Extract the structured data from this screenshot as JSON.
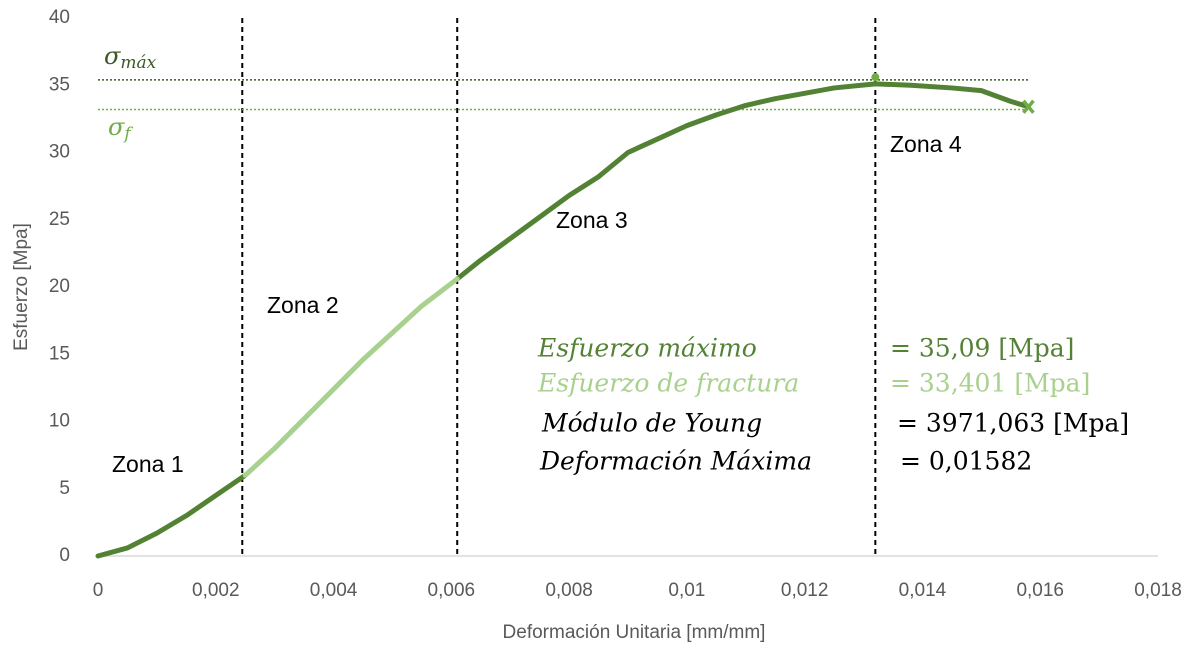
{
  "chart_data": {
    "type": "line",
    "x_label": "Deformación Unitaria [mm/mm]",
    "y_label": "Esfuerzo [Mpa]",
    "x": [
      0,
      0.0005,
      0.001,
      0.0015,
      0.002,
      0.0025,
      0.003,
      0.0035,
      0.004,
      0.0045,
      0.005,
      0.0055,
      0.0061,
      0.0065,
      0.007,
      0.0075,
      0.008,
      0.0085,
      0.009,
      0.0095,
      0.01,
      0.0105,
      0.011,
      0.0115,
      0.012,
      0.0125,
      0.0132,
      0.0138,
      0.0145,
      0.015,
      0.0155,
      0.0158
    ],
    "series": [
      {
        "color": "#548235",
        "values": [
          0,
          0.6,
          1.7,
          3.0,
          4.5,
          6.0,
          null,
          null,
          null,
          null,
          null,
          null,
          20.6,
          22.0,
          23.6,
          25.2,
          26.8,
          28.2,
          30.0,
          31.0,
          32.0,
          32.8,
          33.5,
          34.0,
          34.4,
          34.8,
          35.1,
          35.0,
          34.8,
          34.6,
          33.8,
          33.4
        ]
      },
      {
        "color": "#a9d18e",
        "values": [
          null,
          null,
          null,
          null,
          null,
          6.0,
          8.0,
          10.2,
          12.4,
          14.6,
          16.6,
          18.6,
          20.6,
          null,
          null,
          null,
          null,
          null,
          null,
          null,
          null,
          null,
          null,
          null,
          null,
          null,
          null,
          null,
          null,
          null,
          null,
          null
        ]
      }
    ],
    "xlim": [
      0,
      0.018
    ],
    "ylim": [
      0,
      40
    ],
    "xticks": [
      0,
      {
        "value": 0.002,
        "label": "0,002"
      },
      {
        "value": 0.004,
        "label": "0,004"
      },
      {
        "value": 0.006,
        "label": "0,006"
      },
      {
        "value": 0.008,
        "label": "0,008"
      },
      {
        "value": 0.01,
        "label": "0,01"
      },
      {
        "value": 0.012,
        "label": "0,012"
      },
      {
        "value": 0.014,
        "label": "0,014"
      },
      {
        "value": 0.016,
        "label": "0,016"
      },
      {
        "value": 0.018,
        "label": "0,018"
      }
    ],
    "yticks": [
      0,
      5,
      10,
      15,
      20,
      25,
      30,
      35,
      40
    ],
    "grid": false,
    "vertical_lines": [
      0.00245,
      0.0061,
      0.0132
    ],
    "horizontal_lines": [
      {
        "value": 35.4,
        "color": "#3a5a25",
        "symbol": "σ",
        "subscript": "máx"
      },
      {
        "value": 33.2,
        "color": "#70ad47",
        "symbol": "σ",
        "subscript": "f"
      }
    ],
    "markers": [
      {
        "x": 0.0132,
        "y": 35.6,
        "symbol": "circle",
        "color": "#70ad47"
      },
      {
        "x": 0.0158,
        "y": 33.4,
        "symbol": "x",
        "color": "#70ad47"
      }
    ],
    "zones": [
      "Zona 1",
      "Zona 2",
      "Zona 3",
      "Zona 4"
    ],
    "results": [
      {
        "label": "Esfuerzo máximo",
        "value": "= 35,09 [Mpa]",
        "color": "#548235"
      },
      {
        "label": "Esfuerzo de fractura",
        "value": "= 33,401 [Mpa]",
        "color": "#a9d18e"
      },
      {
        "label": "Módulo de Young",
        "value": "= 3971,063 [Mpa]",
        "color": "#000000"
      },
      {
        "label": "Deformación Máxima",
        "value": "= 0,01582",
        "color": "#000000"
      }
    ]
  }
}
